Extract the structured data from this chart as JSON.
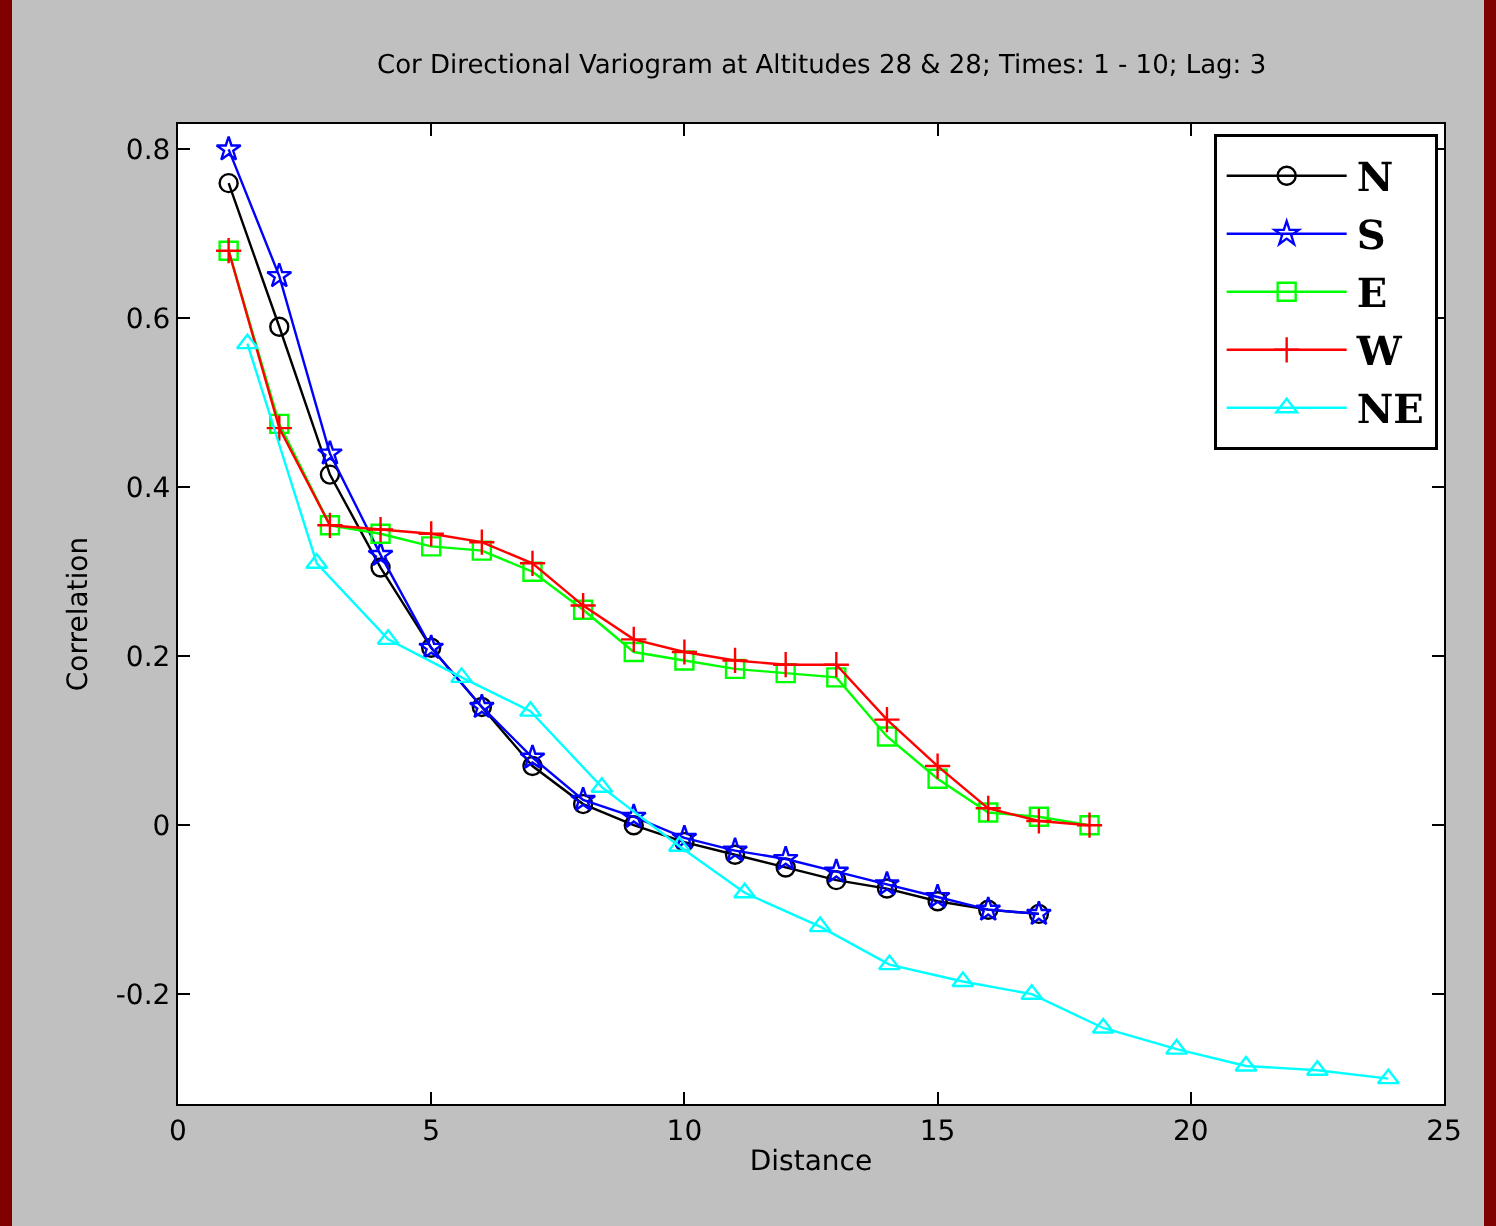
{
  "chart_data": {
    "type": "line",
    "title": "Cor Directional Variogram at Altitudes 28 & 28; Times: 1 - 10; Lag: 3",
    "xlabel": "Distance",
    "ylabel": "Correlation",
    "xlim": [
      0,
      25
    ],
    "xticks": [
      0,
      5,
      10,
      15,
      20,
      25
    ],
    "ylim": [
      -0.33,
      0.83
    ],
    "yticks": [
      -0.2,
      0,
      0.2,
      0.4,
      0.6,
      0.8
    ],
    "grid": false,
    "legend": "top right",
    "series": [
      {
        "name": "N",
        "color": "#000000",
        "marker": "circle",
        "x": [
          1,
          2,
          3,
          4,
          5,
          6,
          7,
          8,
          9,
          10,
          11,
          12,
          13,
          14,
          15,
          16,
          17
        ],
        "values": [
          0.76,
          0.59,
          0.415,
          0.305,
          0.21,
          0.14,
          0.07,
          0.025,
          0.0,
          -0.02,
          -0.035,
          -0.05,
          -0.065,
          -0.075,
          -0.09,
          -0.1,
          -0.105
        ]
      },
      {
        "name": "S",
        "color": "#0000ff",
        "marker": "star",
        "x": [
          1,
          2,
          3,
          4,
          5,
          6,
          7,
          8,
          9,
          10,
          11,
          12,
          13,
          14,
          15,
          16,
          17
        ],
        "values": [
          0.8,
          0.65,
          0.44,
          0.32,
          0.21,
          0.14,
          0.08,
          0.03,
          0.01,
          -0.015,
          -0.03,
          -0.04,
          -0.055,
          -0.07,
          -0.085,
          -0.1,
          -0.105
        ]
      },
      {
        "name": "E",
        "color": "#00ff00",
        "marker": "square",
        "x": [
          1,
          2,
          3,
          4,
          5,
          6,
          7,
          8,
          9,
          10,
          11,
          12,
          13,
          14,
          15,
          16,
          17,
          18
        ],
        "values": [
          0.68,
          0.475,
          0.355,
          0.345,
          0.33,
          0.325,
          0.3,
          0.255,
          0.205,
          0.195,
          0.185,
          0.18,
          0.175,
          0.105,
          0.055,
          0.015,
          0.01,
          0.0
        ]
      },
      {
        "name": "W",
        "color": "#ff0000",
        "marker": "cross",
        "x": [
          1,
          2,
          3,
          4,
          5,
          6,
          7,
          8,
          9,
          10,
          11,
          12,
          13,
          14,
          15,
          16,
          17,
          18
        ],
        "values": [
          0.68,
          0.47,
          0.355,
          0.35,
          0.345,
          0.335,
          0.31,
          0.26,
          0.22,
          0.205,
          0.195,
          0.19,
          0.19,
          0.125,
          0.07,
          0.02,
          0.005,
          0.0
        ]
      },
      {
        "name": "NE",
        "color": "#00ffff",
        "marker": "triangle",
        "x": [
          1.37,
          2.74,
          4.15,
          5.6,
          6.96,
          8.37,
          9.9,
          11.19,
          12.68,
          14.05,
          15.5,
          16.86,
          18.27,
          19.72,
          21.09,
          22.5,
          23.9
        ],
        "values": [
          0.57,
          0.31,
          0.22,
          0.175,
          0.135,
          0.045,
          -0.025,
          -0.08,
          -0.12,
          -0.165,
          -0.185,
          -0.2,
          -0.24,
          -0.265,
          -0.285,
          -0.29,
          -0.3
        ]
      }
    ]
  }
}
